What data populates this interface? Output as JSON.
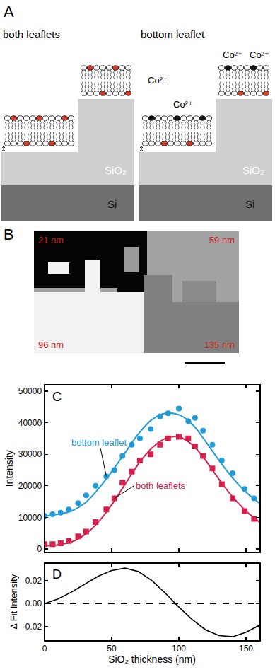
{
  "diagram": {
    "label": "A",
    "panels": [
      {
        "title": "both leaflets",
        "layers": [
          "SiO₂",
          "Si"
        ]
      },
      {
        "title": "bottom leaflet",
        "layers": [
          "SiO₂",
          "Si"
        ],
        "ions": [
          "Co²⁺",
          "Co²⁺",
          "Co²⁺",
          "Co²⁺"
        ]
      }
    ]
  },
  "image": {
    "label": "B",
    "regions": [
      "21 nm",
      "59 nm",
      "96 nm",
      "135 nm"
    ]
  },
  "chart_data": [
    {
      "type": "scatter",
      "label": "C",
      "y_label": "Intensity",
      "x": [
        0,
        6,
        12,
        18,
        25,
        31,
        38,
        46,
        52,
        58,
        65,
        71,
        79,
        86,
        92,
        100,
        107,
        112,
        118,
        125,
        132,
        140,
        149,
        156
      ],
      "series": [
        {
          "color": "#1f9bd7",
          "marker": "circle",
          "values": [
            10500,
            11000,
            11500,
            12500,
            14500,
            17000,
            20000,
            23000,
            25000,
            29500,
            33000,
            35000,
            38000,
            42000,
            43000,
            44500,
            40500,
            41500,
            37500,
            33000,
            28000,
            24000,
            19000,
            16000
          ]
        },
        {
          "color": "#d6204c",
          "marker": "square",
          "values": [
            1500,
            1500,
            1800,
            2500,
            4000,
            5500,
            8500,
            12500,
            16000,
            21000,
            24500,
            28000,
            30000,
            33000,
            35000,
            35500,
            35000,
            32500,
            29500,
            25500,
            20500,
            16000,
            12000,
            9500
          ]
        }
      ],
      "fit": {
        "x": [
          0,
          10,
          20,
          30,
          40,
          50,
          60,
          70,
          80,
          90,
          100,
          110,
          120,
          130,
          140,
          150,
          160
        ],
        "series": [
          {
            "type": "line",
            "color": "#1f9bd7",
            "values": [
              10500,
              11000,
              12000,
              14500,
              19000,
              24500,
              30500,
              36500,
              41000,
              43000,
              42500,
              39500,
              34000,
              28000,
              22500,
              18000,
              14500
            ]
          },
          {
            "type": "line",
            "color": "#d6204c",
            "values": [
              1000,
              1300,
              2200,
              4500,
              8500,
              14000,
              20500,
              27000,
              32000,
              35000,
              35500,
              33000,
              28000,
              22000,
              16500,
              12000,
              8500
            ]
          }
        ]
      },
      "annotations": [
        {
          "text": "bottom leaflet",
          "x": 46,
          "y": 23000,
          "color": "#1f9bd7"
        },
        {
          "text": "both leaflets",
          "x": 52,
          "y": 16000,
          "color": "#d6204c"
        }
      ],
      "xlim": [
        0,
        160
      ],
      "ylim": [
        -1000,
        52000
      ],
      "xticks": [
        0,
        50,
        100,
        150
      ],
      "yticks": [
        0,
        10000,
        20000,
        30000,
        40000,
        50000
      ],
      "tick_labels": "y",
      "grid": false
    },
    {
      "type": "line",
      "label": "D",
      "x_label": "SiO₂ thickness (nm)",
      "y_label": "Δ Fit Intensity",
      "x": [
        0,
        10,
        20,
        30,
        40,
        50,
        60,
        70,
        80,
        90,
        100,
        110,
        120,
        130,
        140,
        150,
        160
      ],
      "series": [
        {
          "color": "#000000",
          "values": [
            0.0,
            0.004,
            0.01,
            0.017,
            0.024,
            0.029,
            0.031,
            0.028,
            0.02,
            0.009,
            -0.003,
            -0.014,
            -0.023,
            -0.028,
            -0.029,
            -0.025,
            -0.019
          ]
        },
        {
          "color": "#000000",
          "line_style": "dashed",
          "values": [
            0,
            0,
            0,
            0,
            0,
            0,
            0,
            0,
            0,
            0,
            0,
            0,
            0,
            0,
            0,
            0,
            0
          ]
        }
      ],
      "xlim": [
        0,
        160
      ],
      "ylim": [
        -0.032,
        0.035
      ],
      "xticks": [
        0,
        50,
        100,
        150
      ],
      "yticks": [
        {
          "value": -0.02,
          "label": "-0.02"
        },
        {
          "value": 0,
          "label": "0.00"
        },
        {
          "value": 0.02,
          "label": "0.02"
        }
      ],
      "grid": false
    }
  ]
}
